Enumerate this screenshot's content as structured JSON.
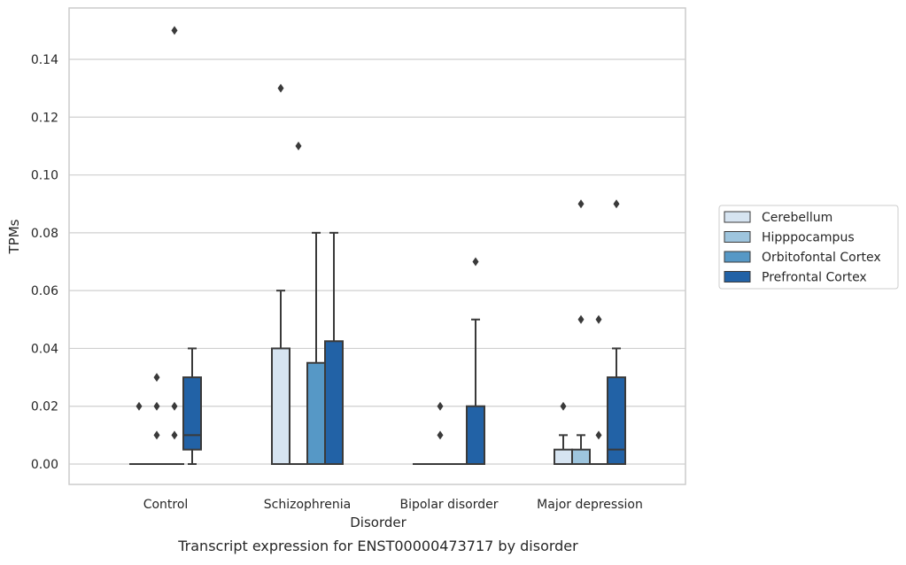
{
  "caption": "Transcript expression for ENST00000473717 by disorder",
  "colors": {
    "Cerebellum": "#d6e4f1",
    "Hipppocampus": "#9ec5de",
    "Orbitofontal Cortex": "#5698c6",
    "Prefrontal Cortex": "#2262a6",
    "edge": "#3a3a3a",
    "grid": "#cfcfcf"
  },
  "chart_data": {
    "type": "box",
    "title": "",
    "xlabel": "Disorder",
    "ylabel": "TPMs",
    "ylim": [
      -0.007,
      0.157
    ],
    "yticks": [
      0.0,
      0.02,
      0.04,
      0.06,
      0.08,
      0.1,
      0.12,
      0.14
    ],
    "ytick_labels": [
      "0.00",
      "0.02",
      "0.04",
      "0.06",
      "0.08",
      "0.10",
      "0.12",
      "0.14"
    ],
    "grid": "horizontal",
    "legend_position": "right",
    "categories": [
      "Control",
      "Schizophrenia",
      "Bipolar disorder",
      "Major depression"
    ],
    "series": [
      {
        "name": "Cerebellum",
        "boxes": [
          {
            "q1": 0.0,
            "median": 0.0,
            "q3": 0.0,
            "whisker_low": 0.0,
            "whisker_high": 0.0,
            "outliers": [
              0.02
            ]
          },
          {
            "q1": 0.0,
            "median": 0.0,
            "q3": 0.04,
            "whisker_low": 0.0,
            "whisker_high": 0.06,
            "outliers": [
              0.13
            ]
          },
          {
            "q1": 0.0,
            "median": 0.0,
            "q3": 0.0,
            "whisker_low": 0.0,
            "whisker_high": 0.0,
            "outliers": []
          },
          {
            "q1": 0.0,
            "median": 0.0,
            "q3": 0.005,
            "whisker_low": 0.0,
            "whisker_high": 0.01,
            "outliers": [
              0.02
            ]
          }
        ]
      },
      {
        "name": "Hipppocampus",
        "boxes": [
          {
            "q1": 0.0,
            "median": 0.0,
            "q3": 0.0,
            "whisker_low": 0.0,
            "whisker_high": 0.0,
            "outliers": [
              0.01,
              0.02,
              0.03
            ]
          },
          {
            "q1": 0.0,
            "median": 0.0,
            "q3": 0.0,
            "whisker_low": 0.0,
            "whisker_high": 0.0,
            "outliers": [
              0.11
            ]
          },
          {
            "q1": 0.0,
            "median": 0.0,
            "q3": 0.0,
            "whisker_low": 0.0,
            "whisker_high": 0.0,
            "outliers": [
              0.01,
              0.02
            ]
          },
          {
            "q1": 0.0,
            "median": 0.0,
            "q3": 0.005,
            "whisker_low": 0.0,
            "whisker_high": 0.01,
            "outliers": [
              0.05,
              0.09
            ]
          }
        ]
      },
      {
        "name": "Orbitofontal Cortex",
        "boxes": [
          {
            "q1": 0.0,
            "median": 0.0,
            "q3": 0.0,
            "whisker_low": 0.0,
            "whisker_high": 0.0,
            "outliers": [
              0.01,
              0.02,
              0.15
            ]
          },
          {
            "q1": 0.0,
            "median": 0.0,
            "q3": 0.035,
            "whisker_low": 0.0,
            "whisker_high": 0.08,
            "outliers": []
          },
          {
            "q1": 0.0,
            "median": 0.0,
            "q3": 0.0,
            "whisker_low": 0.0,
            "whisker_high": 0.0,
            "outliers": []
          },
          {
            "q1": 0.0,
            "median": 0.0,
            "q3": 0.0,
            "whisker_low": 0.0,
            "whisker_high": 0.0,
            "outliers": [
              0.01,
              0.05
            ]
          }
        ]
      },
      {
        "name": "Prefrontal Cortex",
        "boxes": [
          {
            "q1": 0.005,
            "median": 0.01,
            "q3": 0.03,
            "whisker_low": 0.0,
            "whisker_high": 0.04,
            "outliers": []
          },
          {
            "q1": 0.0,
            "median": 0.0,
            "q3": 0.0425,
            "whisker_low": 0.0,
            "whisker_high": 0.08,
            "outliers": []
          },
          {
            "q1": 0.0,
            "median": 0.0,
            "q3": 0.02,
            "whisker_low": 0.0,
            "whisker_high": 0.05,
            "outliers": [
              0.07
            ]
          },
          {
            "q1": 0.0,
            "median": 0.005,
            "q3": 0.03,
            "whisker_low": 0.0,
            "whisker_high": 0.04,
            "outliers": [
              0.09
            ]
          }
        ]
      }
    ]
  }
}
